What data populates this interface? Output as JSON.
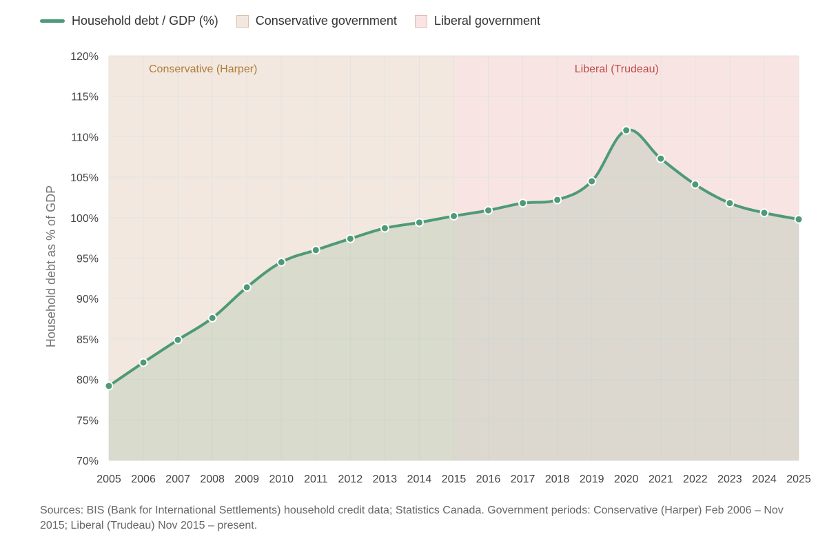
{
  "legend": {
    "series_label": "Household debt / GDP (%)",
    "conservative_label": "Conservative government",
    "liberal_label": "Liberal government"
  },
  "colors": {
    "line": "#4e9a78",
    "area_fill": "#7fae8a",
    "conservative_fill": "#f2e8df",
    "conservative_border": "#d8c2ad",
    "conservative_text": "#b07d3a",
    "liberal_fill": "#f8e5e3",
    "liberal_border": "#e5b9b4",
    "liberal_text": "#bf4a4a",
    "grid": "#e3e3e3"
  },
  "chart_data": {
    "type": "area",
    "x": [
      2005,
      2006,
      2007,
      2008,
      2009,
      2010,
      2011,
      2012,
      2013,
      2014,
      2015,
      2016,
      2017,
      2018,
      2019,
      2020,
      2021,
      2022,
      2023,
      2024,
      2025
    ],
    "series": [
      {
        "name": "Household debt / GDP (%)",
        "values": [
          79.2,
          82.1,
          84.9,
          87.6,
          91.4,
          94.5,
          96.0,
          97.4,
          98.7,
          99.4,
          100.2,
          100.9,
          101.8,
          102.2,
          104.5,
          110.8,
          107.3,
          104.1,
          101.8,
          100.6,
          99.8
        ]
      }
    ],
    "ylabel": "Household debt as % of GDP",
    "ylim": [
      70,
      120
    ],
    "yticks": [
      70,
      75,
      80,
      85,
      90,
      95,
      100,
      105,
      110,
      115,
      120
    ],
    "ytick_labels": [
      "70%",
      "75%",
      "80%",
      "85%",
      "90%",
      "95%",
      "100%",
      "105%",
      "110%",
      "115%",
      "120%"
    ],
    "xtick_labels": [
      "2005",
      "2006",
      "2007",
      "2008",
      "2009",
      "2010",
      "2011",
      "2012",
      "2013",
      "2014",
      "2015",
      "2016",
      "2017",
      "2018",
      "2019",
      "2020",
      "2021",
      "2022",
      "2023",
      "2024",
      "2025"
    ],
    "grid": true,
    "legend_position": "top-left",
    "regions": [
      {
        "label": "Conservative (Harper)",
        "start": 2005,
        "end": 2015,
        "kind": "conservative"
      },
      {
        "label": "Liberal (Trudeau)",
        "start": 2015,
        "end": 2025,
        "kind": "liberal"
      }
    ]
  },
  "source_note": "Sources: BIS (Bank for International Settlements) household credit data; Statistics Canada. Government periods: Conservative (Harper) Feb 2006 – Nov 2015; Liberal (Trudeau) Nov 2015 – present."
}
